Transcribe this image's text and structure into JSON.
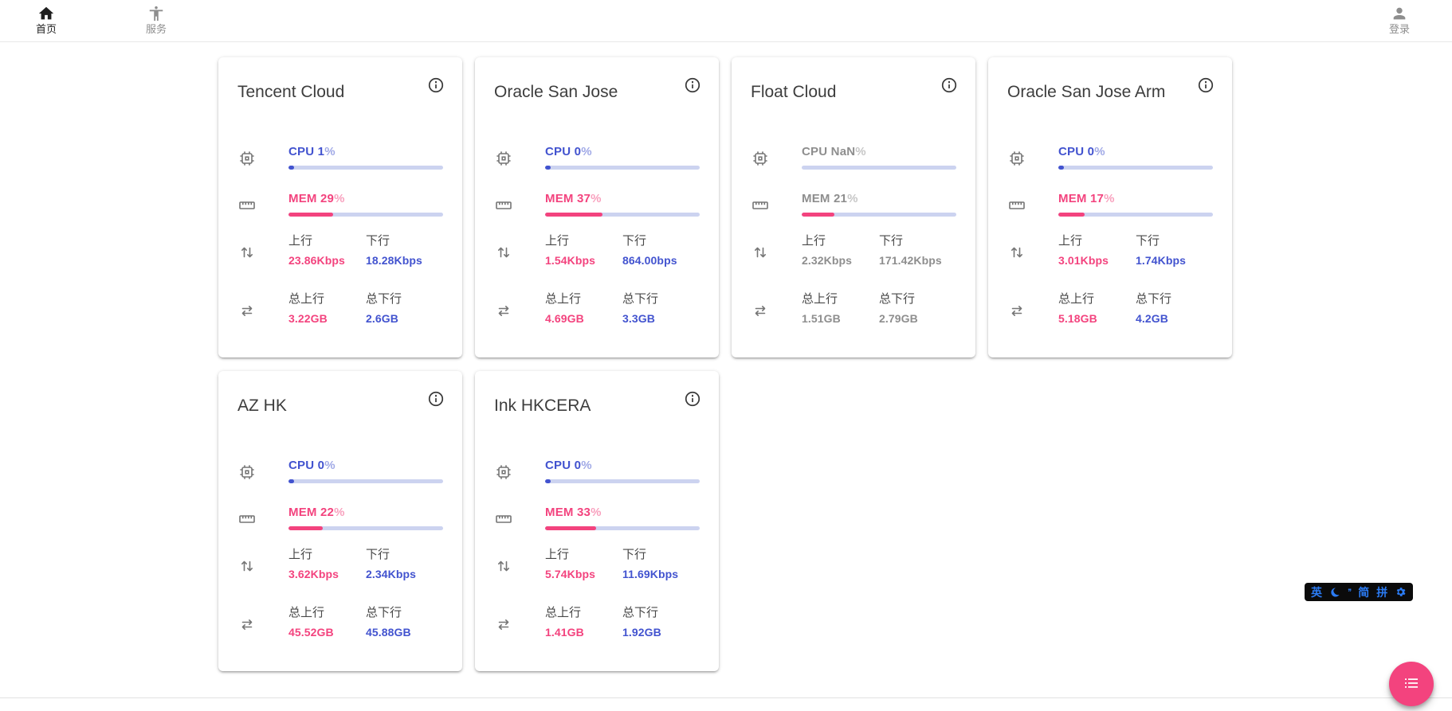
{
  "colors": {
    "accent_blue": "#4253cf",
    "accent_pink": "#f3437e",
    "bar_track": "#ccd3f0",
    "ime_blue": "#2b7bf3"
  },
  "nav": {
    "home": {
      "label": "首页"
    },
    "services": {
      "label": "服务"
    },
    "login": {
      "label": "登录"
    }
  },
  "labels": {
    "cpu": "CPU",
    "mem": "MEM",
    "percent": "%",
    "up": "上行",
    "down": "下行",
    "total_up": "总上行",
    "total_down": "总下行"
  },
  "servers": [
    {
      "name": "Tencent Cloud",
      "cpu_value": "1",
      "cpu_pct": 1,
      "mem_value": "29",
      "mem_pct": 29,
      "up": "23.86Kbps",
      "down": "18.28Kbps",
      "total_up": "3.22GB",
      "total_down": "2.6GB",
      "online": true
    },
    {
      "name": "Oracle San Jose",
      "cpu_value": "0",
      "cpu_pct": 0,
      "mem_value": "37",
      "mem_pct": 37,
      "up": "1.54Kbps",
      "down": "864.00bps",
      "total_up": "4.69GB",
      "total_down": "3.3GB",
      "online": true
    },
    {
      "name": "Float Cloud",
      "cpu_value": "NaN",
      "cpu_pct": null,
      "mem_value": "21",
      "mem_pct": 21,
      "up": "2.32Kbps",
      "down": "171.42Kbps",
      "total_up": "1.51GB",
      "total_down": "2.79GB",
      "online": false
    },
    {
      "name": "Oracle San Jose Arm",
      "cpu_value": "0",
      "cpu_pct": 0,
      "mem_value": "17",
      "mem_pct": 17,
      "up": "3.01Kbps",
      "down": "1.74Kbps",
      "total_up": "5.18GB",
      "total_down": "4.2GB",
      "online": true
    },
    {
      "name": "AZ HK",
      "cpu_value": "0",
      "cpu_pct": 0,
      "mem_value": "22",
      "mem_pct": 22,
      "up": "3.62Kbps",
      "down": "2.34Kbps",
      "total_up": "45.52GB",
      "total_down": "45.88GB",
      "online": true
    },
    {
      "name": "Ink HKCERA",
      "cpu_value": "0",
      "cpu_pct": 0,
      "mem_value": "33",
      "mem_pct": 33,
      "up": "5.74Kbps",
      "down": "11.69Kbps",
      "total_up": "1.41GB",
      "total_down": "1.92GB",
      "online": true
    }
  ],
  "ime": {
    "lang": "英",
    "punct": "’’",
    "simplified": "简",
    "scheme": "拼"
  }
}
